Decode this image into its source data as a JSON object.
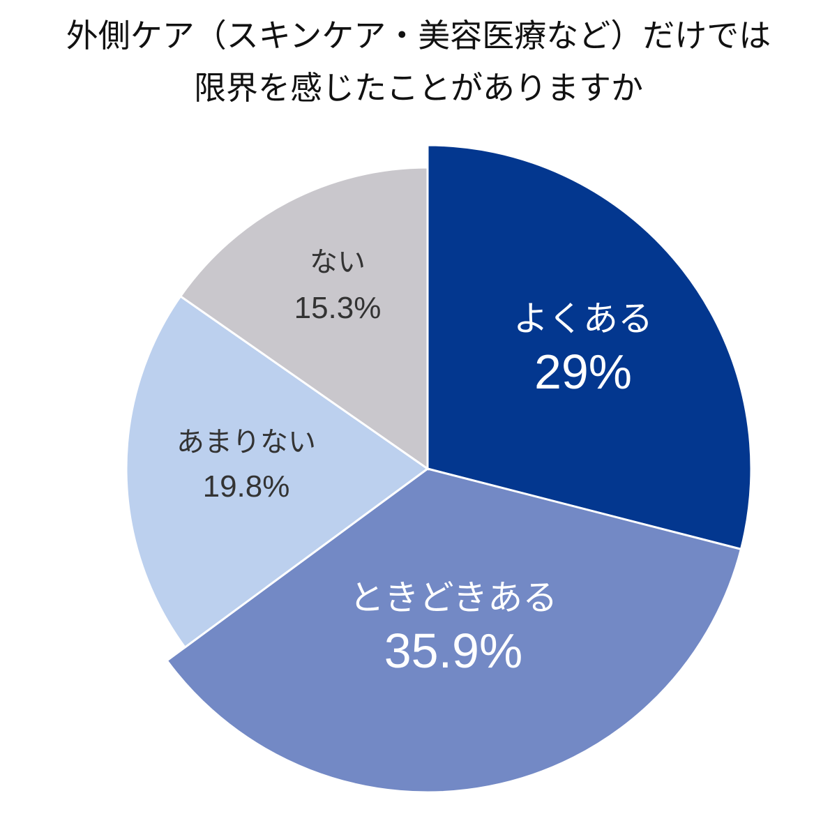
{
  "title": {
    "line1": "外側ケア（スキンケア・美容医療など）だけでは",
    "line2": "限界を感じたことがありますか"
  },
  "chart_data": {
    "type": "pie",
    "title": "外側ケア（スキンケア・美容医療など）だけでは限界を感じたことがありますか",
    "start_angle_deg": 0,
    "direction": "clockwise",
    "categories": [
      "よくある",
      "ときどきある",
      "あまりない",
      "ない"
    ],
    "values": [
      29,
      35.9,
      19.8,
      15.3
    ],
    "unit": "%",
    "colors": [
      "#03378f",
      "#7389c5",
      "#bcd0ee",
      "#c9c7cc"
    ],
    "legend": "none (labels inside slices)"
  },
  "slices": [
    {
      "label": "よくある",
      "value_text": "29%",
      "text_color": "#ffffff"
    },
    {
      "label": "ときどきある",
      "value_text": "35.9%",
      "text_color": "#ffffff"
    },
    {
      "label": "あまりない",
      "value_text": "19.8%",
      "text_color": "#333333"
    },
    {
      "label": "ない",
      "value_text": "15.3%",
      "text_color": "#333333"
    }
  ]
}
